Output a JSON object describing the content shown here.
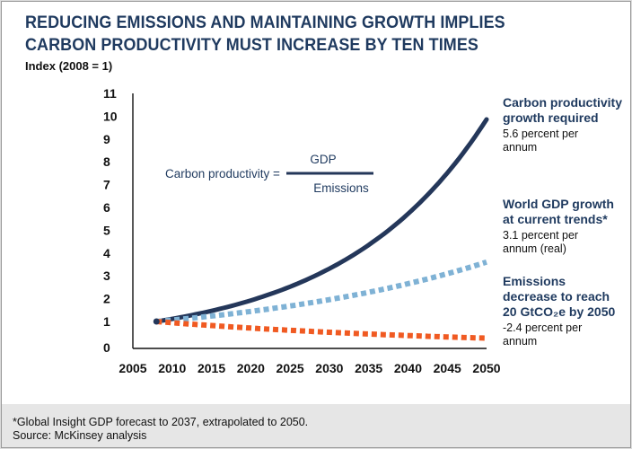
{
  "title_line1": "REDUCING EMISSIONS AND MAINTAINING GROWTH IMPLIES",
  "title_line2": "CARBON PRODUCTIVITY MUST INCREASE BY TEN TIMES",
  "subtitle": "Index (2008 = 1)",
  "formula": {
    "lhs": "Carbon productivity =",
    "numerator": "GDP",
    "denominator": "Emissions"
  },
  "footnote": "*Global Insight GDP forecast to 2037, extrapolated to 2050.",
  "source": "Source:  McKinsey analysis",
  "colors": {
    "title": "#1f3a5f",
    "carbon": "#24375a",
    "gdp": "#7fb2d5",
    "emissions": "#f05a22",
    "label": "#1f3a5f"
  },
  "chart_data": {
    "type": "line",
    "title": "REDUCING EMISSIONS AND MAINTAINING GROWTH IMPLIES CARBON PRODUCTIVITY MUST INCREASE BY TEN TIMES",
    "ylabel": "Index (2008 = 1)",
    "xlabel": "",
    "xlim": [
      2005,
      2050
    ],
    "ylim": [
      0,
      11
    ],
    "x_ticks": [
      2005,
      2010,
      2015,
      2020,
      2025,
      2030,
      2035,
      2040,
      2045,
      2050
    ],
    "y_ticks": [
      0,
      1,
      2,
      3,
      4,
      5,
      6,
      7,
      8,
      9,
      10,
      11
    ],
    "series": [
      {
        "key": "carbon",
        "name": "Carbon productivity growth required",
        "rate_label": "5.6 percent per annum",
        "style": "solid",
        "start_year": 2008,
        "end_year": 2050,
        "annual_growth_pct": 5.6,
        "start_value": 1,
        "end_value": 10.2
      },
      {
        "key": "gdp",
        "name": "World GDP growth at current trends*",
        "rate_label": "3.1 percent per annum (real)",
        "style": "dotted",
        "start_year": 2008,
        "end_year": 2050,
        "annual_growth_pct": 3.1,
        "start_value": 1,
        "end_value": 3.6
      },
      {
        "key": "emissions",
        "name": "Emissions decrease to reach 20 GtCO2e by 2050",
        "rate_label": "-2.4 percent per annum",
        "style": "dotted",
        "start_year": 2008,
        "end_year": 2050,
        "annual_growth_pct": -2.4,
        "start_value": 1,
        "end_value": 0.35
      }
    ],
    "annotations": {
      "carbon": [
        "Carbon productivity",
        "growth required",
        "5.6 percent per",
        "annum"
      ],
      "gdp": [
        "World GDP growth",
        "at current trends*",
        "3.1 percent per",
        "annum (real)"
      ],
      "emissions": [
        "Emissions",
        "decrease to reach",
        "20 GtCO₂e by 2050",
        "-2.4 percent per",
        "annum"
      ]
    }
  }
}
